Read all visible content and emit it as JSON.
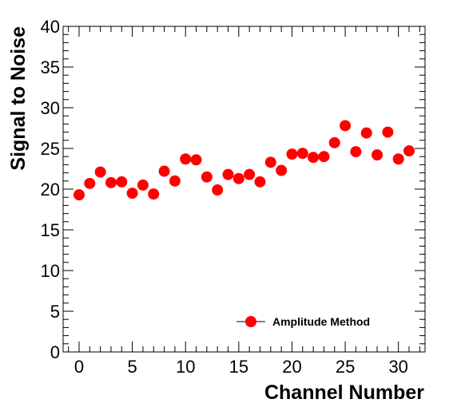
{
  "chart_data": {
    "type": "scatter",
    "title": "",
    "xlabel": "Channel Number",
    "ylabel": "Signal to Noise",
    "xlim": [
      -1.5,
      32.5
    ],
    "ylim": [
      0,
      40
    ],
    "x_ticks": [
      0,
      5,
      10,
      15,
      20,
      25,
      30
    ],
    "y_ticks": [
      0,
      5,
      10,
      15,
      20,
      25,
      30,
      35,
      40
    ],
    "grid": false,
    "legend_position": "bottom-right",
    "series": [
      {
        "name": "Amplitude Method",
        "color": "#ff0000",
        "marker": "circle",
        "x": [
          0,
          1,
          2,
          3,
          4,
          5,
          6,
          7,
          8,
          9,
          10,
          11,
          12,
          13,
          14,
          15,
          16,
          17,
          18,
          19,
          20,
          21,
          22,
          23,
          24,
          25,
          26,
          27,
          28,
          29,
          30,
          31
        ],
        "y": [
          19.3,
          20.7,
          22.1,
          20.8,
          20.9,
          19.5,
          20.5,
          19.4,
          22.2,
          21.0,
          23.7,
          23.6,
          21.5,
          19.9,
          21.8,
          21.3,
          21.8,
          20.9,
          23.3,
          22.3,
          24.3,
          24.4,
          23.9,
          24.0,
          25.7,
          27.8,
          24.6,
          26.9,
          24.2,
          27.0,
          23.7,
          24.7
        ]
      }
    ]
  }
}
